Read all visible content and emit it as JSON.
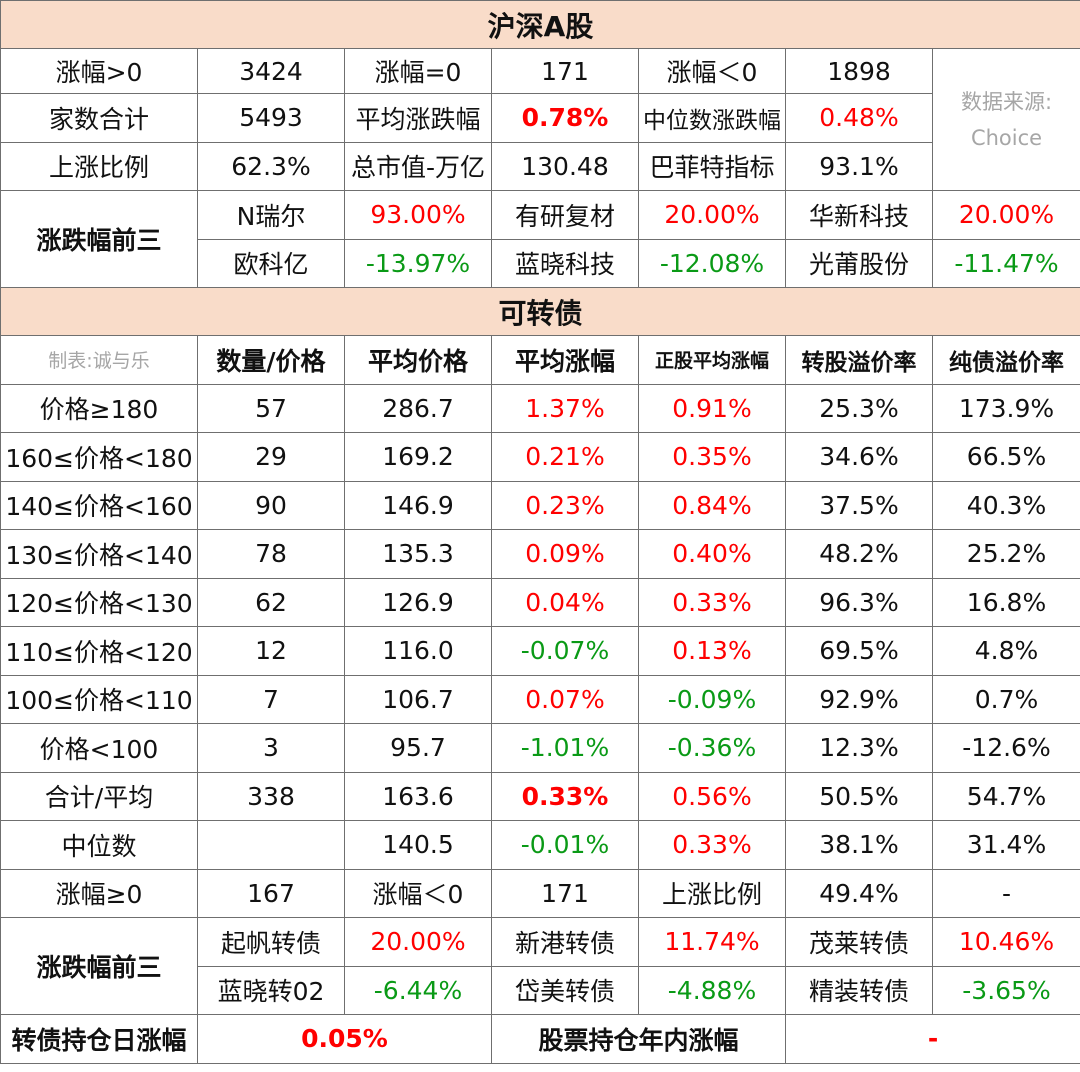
{
  "a_share": {
    "title": "沪深A股",
    "row1": [
      "涨幅>0",
      "3424",
      "涨幅=0",
      "171",
      "涨幅＜0",
      "1898"
    ],
    "source_label": "数据来源:",
    "source_name": "Choice",
    "row2": [
      "家数合计",
      "5493",
      "平均涨跌幅",
      "0.78%",
      "中位数涨跌幅",
      "0.48%"
    ],
    "row3": [
      "上涨比例",
      "62.3%",
      "总市值-万亿",
      "130.48",
      "巴菲特指标",
      "93.1%"
    ],
    "top3_label": "涨跌幅前三",
    "gainers": [
      {
        "name": "N瑞尔",
        "change": "93.00%"
      },
      {
        "name": "有研复材",
        "change": "20.00%"
      },
      {
        "name": "华新科技",
        "change": "20.00%"
      }
    ],
    "losers": [
      {
        "name": "欧科亿",
        "change": "-13.97%"
      },
      {
        "name": "蓝晓科技",
        "change": "-12.08%"
      },
      {
        "name": "光莆股份",
        "change": "-11.47%"
      }
    ]
  },
  "cb": {
    "title": "可转债",
    "maker": "制表:诚与乐",
    "headers": [
      "数量/价格",
      "平均价格",
      "平均涨幅",
      "正股平均涨幅",
      "转股溢价率",
      "纯债溢价率"
    ],
    "rows": [
      {
        "label": "价格≥180",
        "count": "57",
        "avg_price": "286.7",
        "avg_chg": "1.37%",
        "stock_chg": "0.91%",
        "conv_prem": "25.3%",
        "bond_prem": "173.9%"
      },
      {
        "label": "160≤价格<180",
        "count": "29",
        "avg_price": "169.2",
        "avg_chg": "0.21%",
        "stock_chg": "0.35%",
        "conv_prem": "34.6%",
        "bond_prem": "66.5%"
      },
      {
        "label": "140≤价格<160",
        "count": "90",
        "avg_price": "146.9",
        "avg_chg": "0.23%",
        "stock_chg": "0.84%",
        "conv_prem": "37.5%",
        "bond_prem": "40.3%"
      },
      {
        "label": "130≤价格<140",
        "count": "78",
        "avg_price": "135.3",
        "avg_chg": "0.09%",
        "stock_chg": "0.40%",
        "conv_prem": "48.2%",
        "bond_prem": "25.2%"
      },
      {
        "label": "120≤价格<130",
        "count": "62",
        "avg_price": "126.9",
        "avg_chg": "0.04%",
        "stock_chg": "0.33%",
        "conv_prem": "96.3%",
        "bond_prem": "16.8%"
      },
      {
        "label": "110≤价格<120",
        "count": "12",
        "avg_price": "116.0",
        "avg_chg": "-0.07%",
        "stock_chg": "0.13%",
        "conv_prem": "69.5%",
        "bond_prem": "4.8%"
      },
      {
        "label": "100≤价格<110",
        "count": "7",
        "avg_price": "106.7",
        "avg_chg": "0.07%",
        "stock_chg": "-0.09%",
        "conv_prem": "92.9%",
        "bond_prem": "0.7%"
      },
      {
        "label": "价格<100",
        "count": "3",
        "avg_price": "95.7",
        "avg_chg": "-1.01%",
        "stock_chg": "-0.36%",
        "conv_prem": "12.3%",
        "bond_prem": "-12.6%"
      },
      {
        "label": "合计/平均",
        "count": "338",
        "avg_price": "163.6",
        "avg_chg": "0.33%",
        "stock_chg": "0.56%",
        "conv_prem": "50.5%",
        "bond_prem": "54.7%"
      },
      {
        "label": "中位数",
        "count": "",
        "avg_price": "140.5",
        "avg_chg": "-0.01%",
        "stock_chg": "0.33%",
        "conv_prem": "38.1%",
        "bond_prem": "31.4%"
      }
    ],
    "breadth": [
      "涨幅≥0",
      "167",
      "涨幅＜0",
      "171",
      "上涨比例",
      "49.4%",
      "-"
    ],
    "top3_label": "涨跌幅前三",
    "gainers": [
      {
        "name": "起帆转债",
        "change": "20.00%"
      },
      {
        "name": "新港转债",
        "change": "11.74%"
      },
      {
        "name": "茂莱转债",
        "change": "10.46%"
      }
    ],
    "losers": [
      {
        "name": "蓝晓转02",
        "change": "-6.44%"
      },
      {
        "name": "岱美转债",
        "change": "-4.88%"
      },
      {
        "name": "精装转债",
        "change": "-3.65%"
      }
    ]
  },
  "footer": {
    "cb_holding_label": "转债持仓日涨幅",
    "cb_holding_value": "0.05%",
    "stock_holding_label": "股票持仓年内涨幅",
    "stock_holding_value": "-"
  },
  "colors": {
    "header_bg": "#f9dcc9",
    "positive": "#ff0000",
    "negative": "#0a9a16",
    "note": "#a6a6a6",
    "border": "#6f6f6f"
  }
}
